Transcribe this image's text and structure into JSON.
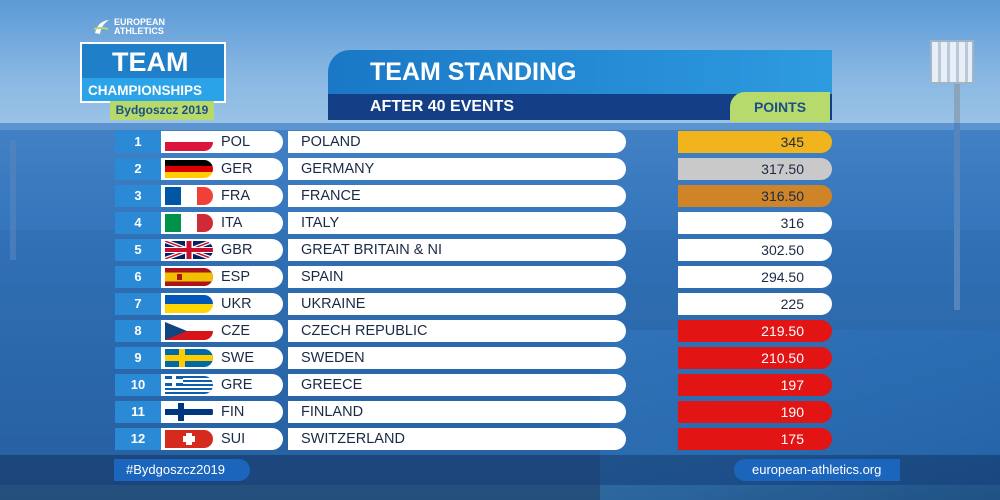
{
  "logo": {
    "top_line_1": "EUROPEAN",
    "top_line_2": "ATHLETICS",
    "team": "TEAM",
    "championships": "CHAMPIONSHIPS",
    "city": "Bydgoszcz 2019"
  },
  "header": {
    "title": "TEAM STANDING",
    "subtitle": "AFTER 40 EVENTS",
    "points_label": "POINTS"
  },
  "colors": {
    "gold": "#f2b41c",
    "silver": "#c9c9c9",
    "bronze": "#cf8427",
    "white": "#ffffff",
    "red": "#e31414"
  },
  "standings": [
    {
      "rank": "1",
      "code": "POL",
      "country": "POLAND",
      "points": "345",
      "flag": "pol-flag-icon",
      "highlight": "gold"
    },
    {
      "rank": "2",
      "code": "GER",
      "country": "GERMANY",
      "points": "317.50",
      "flag": "ger-flag-icon",
      "highlight": "silver"
    },
    {
      "rank": "3",
      "code": "FRA",
      "country": "FRANCE",
      "points": "316.50",
      "flag": "fra-flag-icon",
      "highlight": "bronze"
    },
    {
      "rank": "4",
      "code": "ITA",
      "country": "ITALY",
      "points": "316",
      "flag": "ita-flag-icon",
      "highlight": "white"
    },
    {
      "rank": "5",
      "code": "GBR",
      "country": "GREAT BRITAIN & NI",
      "points": "302.50",
      "flag": "gbr-flag-icon",
      "highlight": "white"
    },
    {
      "rank": "6",
      "code": "ESP",
      "country": "SPAIN",
      "points": "294.50",
      "flag": "esp-flag-icon",
      "highlight": "white"
    },
    {
      "rank": "7",
      "code": "UKR",
      "country": "UKRAINE",
      "points": "225",
      "flag": "ukr-flag-icon",
      "highlight": "white"
    },
    {
      "rank": "8",
      "code": "CZE",
      "country": "CZECH REPUBLIC",
      "points": "219.50",
      "flag": "cze-flag-icon",
      "highlight": "red"
    },
    {
      "rank": "9",
      "code": "SWE",
      "country": "SWEDEN",
      "points": "210.50",
      "flag": "swe-flag-icon",
      "highlight": "red"
    },
    {
      "rank": "10",
      "code": "GRE",
      "country": "GREECE",
      "points": "197",
      "flag": "gre-flag-icon",
      "highlight": "red"
    },
    {
      "rank": "11",
      "code": "FIN",
      "country": "FINLAND",
      "points": "190",
      "flag": "fin-flag-icon",
      "highlight": "red"
    },
    {
      "rank": "12",
      "code": "SUI",
      "country": "SWITZERLAND",
      "points": "175",
      "flag": "sui-flag-icon",
      "highlight": "red"
    }
  ],
  "footer": {
    "hashtag": "#Bydgoszcz2019",
    "website": "european-athletics.org"
  }
}
